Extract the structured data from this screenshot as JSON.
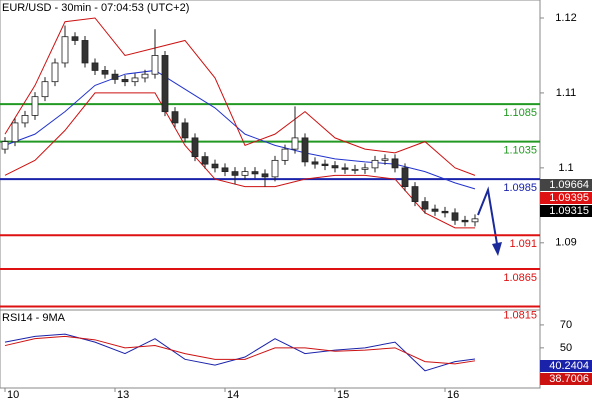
{
  "chart_data": [
    {
      "type": "candlestick",
      "title": "EUR/USD - 30min - 07:04:53 (UTC+2)",
      "categories": [
        "10",
        null,
        null,
        null,
        null,
        null,
        null,
        null,
        null,
        null,
        null,
        "13",
        null,
        null,
        null,
        null,
        null,
        null,
        null,
        null,
        null,
        null,
        "14",
        null,
        null,
        null,
        null,
        null,
        null,
        null,
        null,
        null,
        null,
        "15",
        null,
        null,
        null,
        null,
        null,
        null,
        null,
        null,
        null,
        null,
        "16",
        null,
        null,
        null
      ],
      "open": [
        1.1025,
        1.1035,
        1.106,
        1.107,
        1.1095,
        1.1115,
        1.114,
        1.1175,
        1.117,
        1.114,
        1.113,
        1.1125,
        1.1118,
        1.1115,
        1.112,
        1.1125,
        1.115,
        1.1075,
        1.106,
        1.104,
        1.1015,
        1.1005,
        1.1,
        1.0995,
        1.099,
        1.0995,
        1.0992,
        1.0988,
        1.101,
        1.1025,
        1.104,
        1.1008,
        1.1005,
        1.1003,
        1.1,
        1.0998,
        1.0998,
        1.1,
        1.101,
        1.1012,
        1.1,
        1.0975,
        1.0955,
        1.0945,
        1.0942,
        1.094,
        1.093,
        1.0928
      ],
      "high": [
        1.1041,
        1.1066,
        1.1076,
        1.1101,
        1.1121,
        1.1146,
        1.119,
        1.1181,
        1.1176,
        1.1146,
        1.1136,
        1.1131,
        1.1124,
        1.1126,
        1.1131,
        1.1185,
        1.1156,
        1.1081,
        1.1066,
        1.1046,
        1.1021,
        1.1011,
        1.1006,
        1.1001,
        1.1001,
        1.1001,
        1.0998,
        1.1016,
        1.1031,
        1.1082,
        1.1046,
        1.1014,
        1.1011,
        1.1009,
        1.1006,
        1.1004,
        1.1006,
        1.1016,
        1.1018,
        1.1018,
        1.1006,
        1.0981,
        1.0961,
        1.0951,
        1.0948,
        1.0946,
        1.0936,
        1.0938
      ],
      "low": [
        1.1019,
        1.1029,
        1.1054,
        1.1064,
        1.1089,
        1.1109,
        1.1134,
        1.1164,
        1.1134,
        1.1124,
        1.1119,
        1.1112,
        1.1109,
        1.1109,
        1.1114,
        1.1119,
        1.1069,
        1.1054,
        1.1034,
        1.1009,
        1.0999,
        1.0994,
        1.0989,
        1.0978,
        1.0984,
        1.0986,
        1.0975,
        1.0982,
        1.1004,
        1.1019,
        1.1002,
        1.0999,
        1.0997,
        1.0994,
        1.0992,
        1.0992,
        1.0992,
        1.0994,
        1.1004,
        1.0994,
        1.0969,
        1.0949,
        1.0939,
        1.0936,
        1.0934,
        1.0924,
        1.0922,
        1.0922
      ],
      "close": [
        1.1035,
        1.106,
        1.107,
        1.1095,
        1.1115,
        1.114,
        1.1175,
        1.117,
        1.114,
        1.113,
        1.1125,
        1.1118,
        1.1115,
        1.112,
        1.1125,
        1.115,
        1.1075,
        1.106,
        1.104,
        1.1015,
        1.1005,
        1.1,
        1.0995,
        1.099,
        1.0995,
        1.0992,
        1.0988,
        1.101,
        1.1025,
        1.104,
        1.1008,
        1.1005,
        1.1003,
        1.1,
        1.0998,
        1.0998,
        1.1,
        1.101,
        1.1012,
        1.1,
        1.0975,
        1.0955,
        1.0945,
        1.0942,
        1.094,
        1.093,
        1.0928,
        1.0932
      ],
      "overlays": [
        {
          "color": "#2233cc",
          "x": [
            0,
            3,
            6,
            9,
            12,
            15,
            18,
            21,
            24,
            27,
            30,
            33,
            36,
            39,
            42,
            45,
            47
          ],
          "values": [
            1.103,
            1.1045,
            1.1075,
            1.111,
            1.1125,
            1.113,
            1.1105,
            1.108,
            1.1045,
            1.103,
            1.102,
            1.1012,
            1.1008,
            1.1005,
            1.0995,
            1.098,
            1.0972
          ]
        },
        {
          "color": "#cc1111",
          "x": [
            0,
            3,
            6,
            9,
            12,
            15,
            18,
            21,
            24,
            27,
            30,
            33,
            36,
            39,
            42,
            45,
            47
          ],
          "values": [
            1.1045,
            1.111,
            1.1195,
            1.12,
            1.115,
            1.116,
            1.117,
            1.112,
            1.103,
            1.1045,
            1.1075,
            1.104,
            1.1025,
            1.102,
            1.1035,
            1.1,
            1.099
          ]
        },
        {
          "color": "#cc1111",
          "x": [
            0,
            3,
            6,
            9,
            12,
            15,
            18,
            21,
            24,
            27,
            30,
            33,
            36,
            39,
            42,
            45,
            47
          ],
          "values": [
            1.099,
            1.101,
            1.105,
            1.11,
            1.11,
            1.11,
            1.103,
            1.0985,
            1.0975,
            1.0975,
            1.0985,
            1.099,
            1.099,
            1.0985,
            1.094,
            1.092,
            1.092
          ]
        }
      ],
      "levels": [
        {
          "value": 1.1085,
          "color": "#229922"
        },
        {
          "value": 1.1035,
          "color": "#229922"
        },
        {
          "value": 1.0985,
          "color": "#1a22aa"
        },
        {
          "value": 1.091,
          "color": "#dd1111"
        },
        {
          "value": 1.0865,
          "color": "#dd1111"
        },
        {
          "value": 1.0815,
          "color": "#dd1111"
        }
      ],
      "price_labels": [
        {
          "text": "1.09664",
          "color": "#444444"
        },
        {
          "text": "1.09395",
          "color": "#dd1111"
        },
        {
          "text": "1.09315",
          "color": "#000000"
        }
      ],
      "ylim": [
        1.0813,
        1.1224
      ],
      "yticks": [
        1.09,
        1.1,
        1.11,
        1.12
      ]
    },
    {
      "type": "line",
      "title": "RSI14 - 9MA",
      "series": [
        {
          "color": "#1a22aa",
          "x": [
            0,
            3,
            6,
            9,
            12,
            15,
            18,
            21,
            24,
            27,
            30,
            33,
            36,
            39,
            42,
            45,
            47
          ],
          "values": [
            55,
            60,
            62,
            55,
            45,
            58,
            40,
            35,
            42,
            58,
            45,
            48,
            50,
            55,
            30,
            38,
            40.2404
          ]
        },
        {
          "color": "#cc1111",
          "x": [
            0,
            3,
            6,
            9,
            12,
            15,
            18,
            21,
            24,
            27,
            30,
            33,
            36,
            39,
            42,
            45,
            47
          ],
          "values": [
            52,
            58,
            60,
            57,
            50,
            52,
            45,
            40,
            40,
            50,
            50,
            47,
            48,
            50,
            38,
            36,
            38.7006
          ]
        }
      ],
      "ylim": [
        15,
        83
      ],
      "yticks": [
        50,
        70
      ]
    }
  ]
}
